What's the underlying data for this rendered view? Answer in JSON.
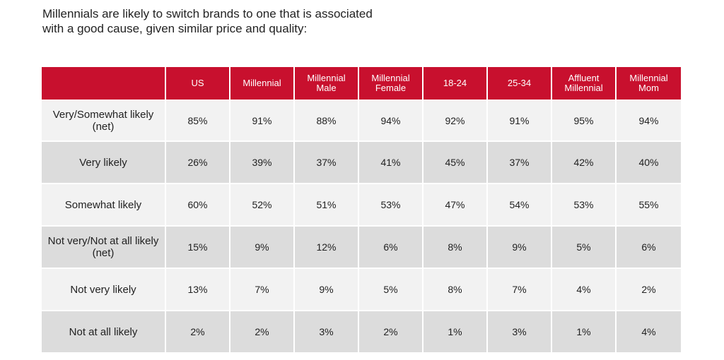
{
  "title": {
    "line1": "Millennials are likely to switch brands to one that is associated",
    "line2": "with a good cause, given similar price and quality:"
  },
  "table": {
    "columns": [
      {
        "lines": [
          "US"
        ]
      },
      {
        "lines": [
          "Millennial"
        ]
      },
      {
        "lines": [
          "Millennial",
          "Male"
        ]
      },
      {
        "lines": [
          "Millennial",
          "Female"
        ]
      },
      {
        "lines": [
          "18-24"
        ]
      },
      {
        "lines": [
          "25-34"
        ]
      },
      {
        "lines": [
          "Affluent",
          "Millennial"
        ]
      },
      {
        "lines": [
          "Millennial",
          "Mom"
        ]
      }
    ],
    "rows": [
      {
        "label": [
          "Very/Somewhat likely",
          "(net)"
        ],
        "values": [
          "85%",
          "91%",
          "88%",
          "94%",
          "92%",
          "91%",
          "95%",
          "94%"
        ]
      },
      {
        "label": [
          "Very likely"
        ],
        "values": [
          "26%",
          "39%",
          "37%",
          "41%",
          "45%",
          "37%",
          "42%",
          "40%"
        ]
      },
      {
        "label": [
          "Somewhat likely"
        ],
        "values": [
          "60%",
          "52%",
          "51%",
          "53%",
          "47%",
          "54%",
          "53%",
          "55%"
        ]
      },
      {
        "label": [
          "Not very/Not at all likely",
          "(net)"
        ],
        "values": [
          "15%",
          "9%",
          "12%",
          "6%",
          "8%",
          "9%",
          "5%",
          "6%"
        ]
      },
      {
        "label": [
          "Not very likely"
        ],
        "values": [
          "13%",
          "7%",
          "9%",
          "5%",
          "8%",
          "7%",
          "4%",
          "2%"
        ]
      },
      {
        "label": [
          "Not at all likely"
        ],
        "values": [
          "2%",
          "2%",
          "3%",
          "2%",
          "1%",
          "3%",
          "1%",
          "4%"
        ]
      }
    ]
  },
  "colors": {
    "header_bg": "#c8102e",
    "row_light": "#f2f2f2",
    "row_dark": "#dcdcdc"
  }
}
